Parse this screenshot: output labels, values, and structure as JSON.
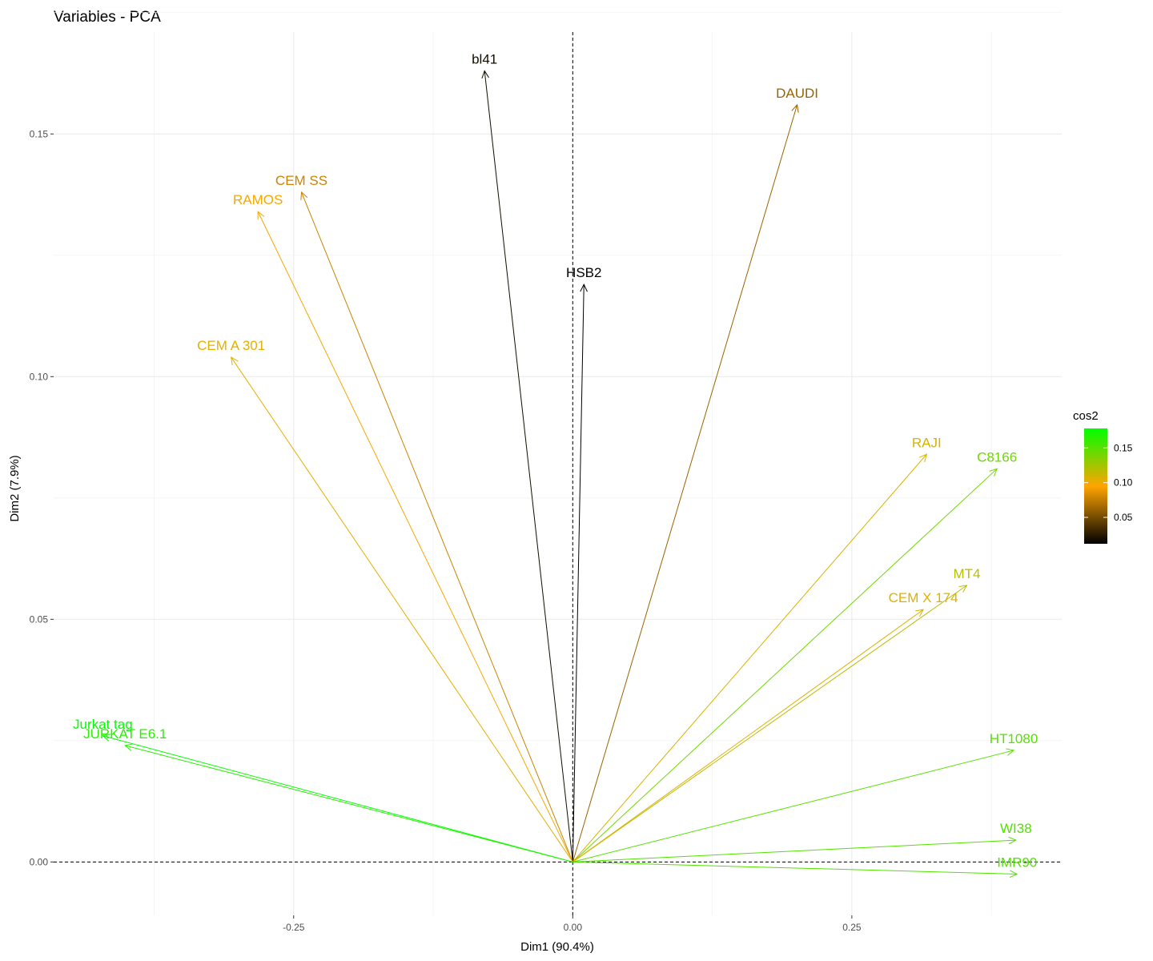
{
  "chart_data": {
    "type": "scatter",
    "title": "Variables - PCA",
    "xlabel": "Dim1 (90.4%)",
    "ylabel": "Dim2 (7.9%)",
    "xlim": [
      -0.465,
      0.438
    ],
    "ylim": [
      -0.011,
      0.171
    ],
    "x_ticks": [
      -0.25,
      0.0,
      0.25
    ],
    "x_tick_labels": [
      "-0.25",
      "0.00",
      "0.25"
    ],
    "y_ticks": [
      0.0,
      0.05,
      0.1,
      0.15
    ],
    "y_tick_labels": [
      "0.00",
      "0.05",
      "0.10",
      "0.15"
    ],
    "grid": true,
    "reference_lines": {
      "x": 0,
      "y": 0
    },
    "legend": {
      "title": "cos2",
      "position": "right",
      "range": [
        0.012,
        0.178
      ],
      "ticks": [
        0.05,
        0.1,
        0.15
      ],
      "tick_labels": [
        "0.05",
        "0.10",
        "0.15"
      ],
      "colors": [
        "#000000",
        "#FFA500",
        "#00FF00"
      ]
    },
    "variables": [
      {
        "name": "bl41",
        "x": -0.079,
        "y": 0.163,
        "cos2": 0.018
      },
      {
        "name": "DAUDI",
        "x": 0.201,
        "y": 0.156,
        "cos2": 0.062
      },
      {
        "name": "CEM SS",
        "x": -0.243,
        "y": 0.138,
        "cos2": 0.078
      },
      {
        "name": "RAMOS",
        "x": -0.282,
        "y": 0.134,
        "cos2": 0.098
      },
      {
        "name": "HSB2",
        "x": 0.01,
        "y": 0.119,
        "cos2": 0.012
      },
      {
        "name": "CEM A 301",
        "x": -0.306,
        "y": 0.104,
        "cos2": 0.104
      },
      {
        "name": "RAJI",
        "x": 0.317,
        "y": 0.084,
        "cos2": 0.108
      },
      {
        "name": "C8166",
        "x": 0.38,
        "y": 0.081,
        "cos2": 0.142
      },
      {
        "name": "MT4",
        "x": 0.353,
        "y": 0.057,
        "cos2": 0.118
      },
      {
        "name": "CEM X 174",
        "x": 0.314,
        "y": 0.052,
        "cos2": 0.106
      },
      {
        "name": "Jurkat tag",
        "x": -0.421,
        "y": 0.026,
        "cos2": 0.178
      },
      {
        "name": "JURKAT E6.1",
        "x": -0.401,
        "y": 0.024,
        "cos2": 0.165
      },
      {
        "name": "HT1080",
        "x": 0.395,
        "y": 0.023,
        "cos2": 0.15
      },
      {
        "name": "WI38",
        "x": 0.397,
        "y": 0.0045,
        "cos2": 0.152
      },
      {
        "name": "IMR90",
        "x": 0.398,
        "y": -0.0025,
        "cos2": 0.152
      }
    ]
  }
}
